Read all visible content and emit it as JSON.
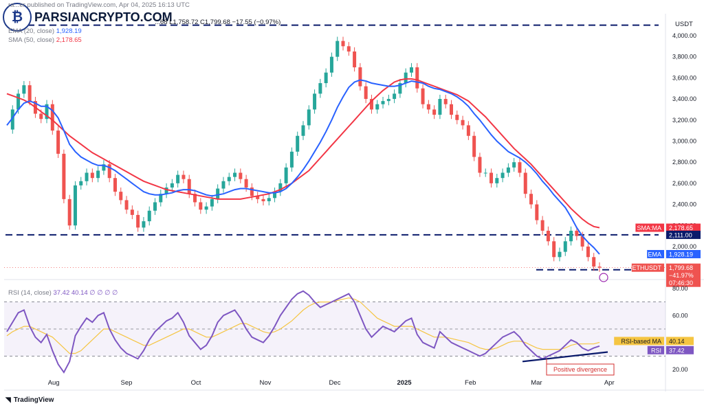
{
  "header": {
    "publisher": "ra...er published on TradingView.com, Apr 04, 2025 16:13 UTC",
    "ohlc_tail": "...68  L1,758.72  C1,799.68  −17.55 (−0.97%)",
    "ema_label": "EMA (20, close)",
    "ema_value": "1,928.19",
    "sma_label": "SMA (50, close)",
    "sma_value": "2,178.65",
    "rsi_label": "RSI (14, close)",
    "rsi_values": "37.42  40.14  ∅  ∅  ∅  ∅"
  },
  "watermark": {
    "text": "PARSIANCRYPTO.COM",
    "icon": "bitcoin-logo-icon"
  },
  "footer": {
    "brand": "TradingView",
    "icon": "tradingview-logo-icon"
  },
  "annotation": {
    "text": "Positive divergence"
  },
  "colors": {
    "up": "#26a69a",
    "down": "#ef5350",
    "ema": "#2962ff",
    "sma": "#f23645",
    "rsi": "#7e57c2",
    "rsi_ma": "#f5c542",
    "level": "#0a1a6b"
  },
  "chart_data": {
    "type": "line",
    "symbol": "ETHUSDT",
    "quote": "USDT",
    "price_axis": {
      "ticks": [
        "4,000.00",
        "3,800.00",
        "3,600.00",
        "3,400.00",
        "3,200.00",
        "3,000.00",
        "2,800.00",
        "2,600.00",
        "2,400.00",
        "2,200.00",
        "2,000.00"
      ],
      "ylim": [
        1700,
        4130
      ]
    },
    "time_axis": {
      "ticks": [
        "Aug",
        "Sep",
        "Oct",
        "Nov",
        "Dec",
        "2025",
        "Feb",
        "Mar",
        "Apr"
      ]
    },
    "price_labels": [
      {
        "name": "SMA:MA",
        "value": "2,178.65",
        "color": "#f23645"
      },
      {
        "name": "",
        "value": "2,111.00",
        "color": "#0a1a6b"
      },
      {
        "name": "EMA",
        "value": "1,928.19",
        "color": "#2962ff"
      },
      {
        "name": "ETHUSDT",
        "value": "1,799.68",
        "color": "#ef5350"
      },
      {
        "name": "",
        "value": "−41.97%",
        "color": "#ef5350"
      },
      {
        "name": "",
        "value": "07:46:30",
        "color": "#ef5350"
      }
    ],
    "horizontal_levels": [
      4100,
      2111,
      1780
    ],
    "close_series": [
      3110,
      3300,
      3450,
      3530,
      3380,
      3260,
      3210,
      3350,
      3100,
      2880,
      2450,
      2200,
      2580,
      2620,
      2700,
      2650,
      2720,
      2780,
      2650,
      2520,
      2440,
      2350,
      2300,
      2180,
      2240,
      2340,
      2420,
      2500,
      2560,
      2600,
      2680,
      2640,
      2500,
      2420,
      2350,
      2380,
      2450,
      2550,
      2620,
      2660,
      2700,
      2640,
      2560,
      2480,
      2450,
      2430,
      2460,
      2520,
      2600,
      2750,
      2900,
      3050,
      3150,
      3300,
      3450,
      3550,
      3650,
      3800,
      3950,
      3900,
      3850,
      3700,
      3520,
      3400,
      3300,
      3350,
      3380,
      3400,
      3450,
      3550,
      3650,
      3700,
      3500,
      3350,
      3300,
      3250,
      3400,
      3350,
      3250,
      3200,
      3150,
      3050,
      2850,
      2700,
      2700,
      2600,
      2650,
      2700,
      2750,
      2800,
      2700,
      2500,
      2400,
      2250,
      2150,
      2050,
      1900,
      1950,
      2050,
      2150,
      2100,
      2000,
      1900,
      1810,
      1800
    ],
    "ema_series": [
      3150,
      3220,
      3300,
      3360,
      3380,
      3360,
      3330,
      3330,
      3290,
      3220,
      3100,
      2970,
      2900,
      2850,
      2820,
      2790,
      2770,
      2770,
      2750,
      2720,
      2680,
      2640,
      2600,
      2560,
      2520,
      2500,
      2490,
      2490,
      2500,
      2510,
      2530,
      2540,
      2540,
      2530,
      2510,
      2490,
      2480,
      2490,
      2500,
      2520,
      2540,
      2550,
      2550,
      2540,
      2530,
      2520,
      2510,
      2510,
      2520,
      2550,
      2600,
      2660,
      2730,
      2810,
      2900,
      2990,
      3090,
      3200,
      3320,
      3420,
      3510,
      3560,
      3580,
      3570,
      3550,
      3540,
      3530,
      3520,
      3520,
      3530,
      3550,
      3570,
      3560,
      3550,
      3520,
      3500,
      3490,
      3470,
      3450,
      3420,
      3380,
      3330,
      3260,
      3200,
      3130,
      3060,
      3000,
      2950,
      2900,
      2870,
      2840,
      2800,
      2750,
      2690,
      2620,
      2560,
      2490,
      2430,
      2370,
      2280,
      2180,
      2100,
      2040,
      1990,
      1928
    ],
    "sma_series": [
      3450,
      3430,
      3410,
      3390,
      3360,
      3320,
      3280,
      3240,
      3200,
      3150,
      3100,
      3050,
      3010,
      2970,
      2930,
      2890,
      2860,
      2830,
      2800,
      2770,
      2740,
      2710,
      2680,
      2650,
      2620,
      2600,
      2580,
      2560,
      2540,
      2530,
      2520,
      2510,
      2500,
      2490,
      2480,
      2470,
      2460,
      2450,
      2450,
      2450,
      2450,
      2450,
      2460,
      2470,
      2480,
      2490,
      2500,
      2520,
      2540,
      2570,
      2600,
      2640,
      2680,
      2720,
      2780,
      2840,
      2900,
      2960,
      3020,
      3080,
      3140,
      3200,
      3260,
      3320,
      3380,
      3430,
      3480,
      3520,
      3560,
      3580,
      3590,
      3590,
      3580,
      3560,
      3540,
      3520,
      3500,
      3480,
      3460,
      3440,
      3410,
      3380,
      3330,
      3280,
      3230,
      3170,
      3110,
      3050,
      2990,
      2930,
      2880,
      2830,
      2780,
      2720,
      2660,
      2600,
      2540,
      2480,
      2420,
      2360,
      2310,
      2260,
      2220,
      2190,
      2178.65
    ],
    "rsi": {
      "axis_ticks": [
        "80.00",
        "60.00",
        "40.00",
        "20.00"
      ],
      "ylim": [
        15,
        85
      ],
      "bands": [
        70,
        50,
        30
      ],
      "rsi_label": "RSI",
      "rsi_value": "37.42",
      "ma_label": "RSI-based MA",
      "ma_value": "40.14",
      "series": [
        48,
        55,
        62,
        64,
        52,
        44,
        40,
        46,
        34,
        24,
        18,
        26,
        45,
        52,
        58,
        55,
        60,
        62,
        50,
        42,
        36,
        32,
        30,
        28,
        34,
        42,
        48,
        52,
        56,
        58,
        62,
        55,
        45,
        40,
        35,
        38,
        45,
        55,
        60,
        62,
        64,
        58,
        50,
        44,
        42,
        40,
        45,
        52,
        60,
        66,
        72,
        76,
        78,
        75,
        70,
        66,
        68,
        70,
        72,
        74,
        76,
        70,
        60,
        50,
        44,
        48,
        52,
        50,
        48,
        52,
        56,
        58,
        46,
        40,
        38,
        36,
        48,
        44,
        40,
        38,
        36,
        34,
        32,
        30,
        32,
        36,
        40,
        44,
        46,
        48,
        44,
        38,
        34,
        30,
        28,
        30,
        32,
        34,
        38,
        42,
        40,
        36,
        34,
        36,
        37.42
      ],
      "ma_series": [
        45,
        48,
        50,
        52,
        52,
        50,
        48,
        46,
        44,
        40,
        36,
        32,
        32,
        34,
        38,
        42,
        46,
        50,
        50,
        48,
        46,
        44,
        42,
        40,
        38,
        38,
        40,
        42,
        44,
        46,
        48,
        50,
        50,
        48,
        46,
        44,
        44,
        46,
        48,
        50,
        52,
        54,
        54,
        52,
        50,
        48,
        47,
        48,
        50,
        53,
        56,
        60,
        64,
        67,
        69,
        70,
        70,
        70,
        71,
        72,
        73,
        72,
        70,
        66,
        62,
        58,
        56,
        54,
        52,
        52,
        52,
        52,
        50,
        48,
        46,
        44,
        44,
        44,
        43,
        42,
        41,
        40,
        38,
        36,
        35,
        35,
        36,
        38,
        40,
        41,
        41,
        40,
        38,
        36,
        35,
        35,
        35,
        35,
        36,
        38,
        39,
        39,
        39,
        39,
        40.14
      ]
    }
  }
}
